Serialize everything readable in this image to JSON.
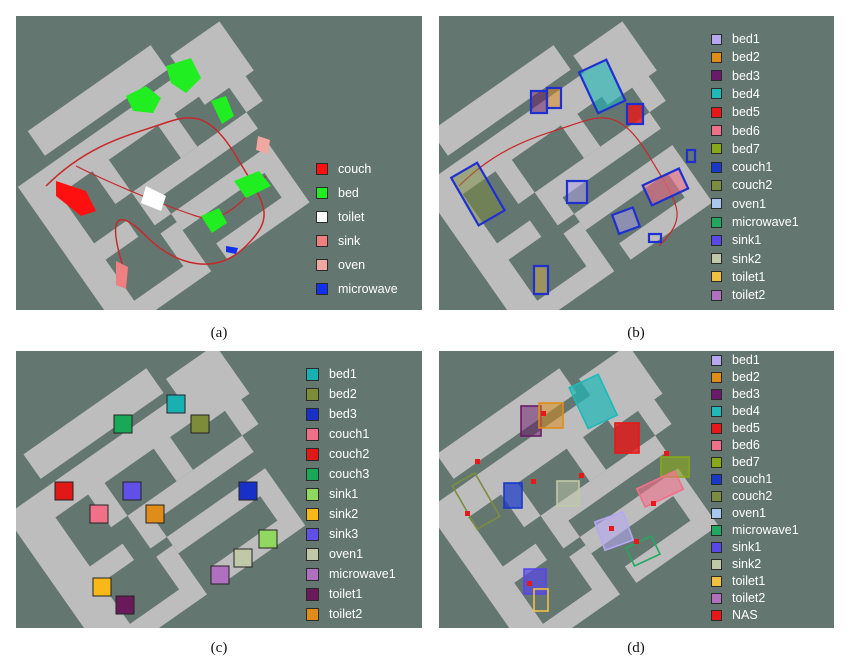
{
  "colors": {
    "background": "#647670",
    "floor": "#bdbdbd",
    "wall": "#7d8580",
    "trajectory": "#c8272a"
  },
  "panels": {
    "a": {
      "caption": "(a)",
      "legend": [
        {
          "label": "couch",
          "color": "#ff1010"
        },
        {
          "label": "bed",
          "color": "#20ee20"
        },
        {
          "label": "toilet",
          "color": "#ffffff"
        },
        {
          "label": "sink",
          "color": "#f08080"
        },
        {
          "label": "oven",
          "color": "#f0a8a0"
        },
        {
          "label": "microwave",
          "color": "#1030ee"
        }
      ]
    },
    "b": {
      "caption": "(b)",
      "legend": [
        {
          "label": "bed1",
          "color": "#b4a8f0"
        },
        {
          "label": "bed2",
          "color": "#e08c18"
        },
        {
          "label": "bed3",
          "color": "#6a1a6a"
        },
        {
          "label": "bed4",
          "color": "#20b8b8"
        },
        {
          "label": "bed5",
          "color": "#e81818"
        },
        {
          "label": "bed6",
          "color": "#f07088"
        },
        {
          "label": "bed7",
          "color": "#88a818"
        },
        {
          "label": "couch1",
          "color": "#1838c8"
        },
        {
          "label": "couch2",
          "color": "#7c8c40"
        },
        {
          "label": "oven1",
          "color": "#a8c8f0"
        },
        {
          "label": "microwave1",
          "color": "#20a860"
        },
        {
          "label": "sink1",
          "color": "#5848e8"
        },
        {
          "label": "sink2",
          "color": "#c0c8a8"
        },
        {
          "label": "toilet1",
          "color": "#f0c040"
        },
        {
          "label": "toilet2",
          "color": "#b070c0"
        }
      ]
    },
    "c": {
      "caption": "(c)",
      "legend": [
        {
          "label": "bed1",
          "color": "#18b0b0"
        },
        {
          "label": "bed2",
          "color": "#7c8c38"
        },
        {
          "label": "bed3",
          "color": "#1830c8"
        },
        {
          "label": "couch1",
          "color": "#f07088"
        },
        {
          "label": "couch2",
          "color": "#e01818"
        },
        {
          "label": "couch3",
          "color": "#18a858"
        },
        {
          "label": "sink1",
          "color": "#90d860"
        },
        {
          "label": "sink2",
          "color": "#f8b818"
        },
        {
          "label": "sink3",
          "color": "#6050e8"
        },
        {
          "label": "oven1",
          "color": "#c0c8a8"
        },
        {
          "label": "microwave1",
          "color": "#b070c0"
        },
        {
          "label": "toilet1",
          "color": "#6a1a5a"
        },
        {
          "label": "toilet2",
          "color": "#e08c18"
        }
      ]
    },
    "d": {
      "caption": "(d)",
      "legend": [
        {
          "label": "bed1",
          "color": "#b4a8f0"
        },
        {
          "label": "bed2",
          "color": "#e08c18"
        },
        {
          "label": "bed3",
          "color": "#6a1a6a"
        },
        {
          "label": "bed4",
          "color": "#20b8b8"
        },
        {
          "label": "bed5",
          "color": "#e81818"
        },
        {
          "label": "bed6",
          "color": "#f07088"
        },
        {
          "label": "bed7",
          "color": "#88a818"
        },
        {
          "label": "couch1",
          "color": "#1838c8"
        },
        {
          "label": "couch2",
          "color": "#7c8c40"
        },
        {
          "label": "oven1",
          "color": "#a8c8f0"
        },
        {
          "label": "microwave1",
          "color": "#20a860"
        },
        {
          "label": "sink1",
          "color": "#5848e8"
        },
        {
          "label": "sink2",
          "color": "#c0c8a8"
        },
        {
          "label": "toilet1",
          "color": "#f0c040"
        },
        {
          "label": "toilet2",
          "color": "#b070c0"
        },
        {
          "label": "NAS",
          "color": "#e81818"
        }
      ]
    }
  }
}
